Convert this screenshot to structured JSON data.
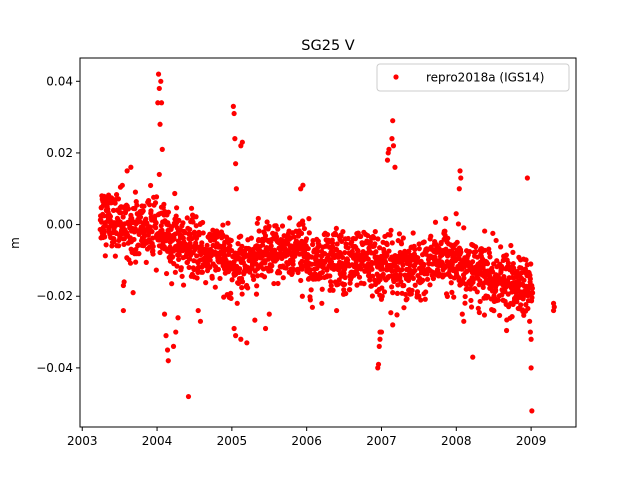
{
  "chart_data": {
    "type": "scatter",
    "title": "SG25 V",
    "xlabel": "",
    "ylabel": "m",
    "xlim": [
      2002.97,
      2009.6
    ],
    "ylim": [
      -0.0565,
      0.0465
    ],
    "x_ticks": [
      2003,
      2004,
      2005,
      2006,
      2007,
      2008,
      2009
    ],
    "x_tick_labels": [
      "2003",
      "2004",
      "2005",
      "2006",
      "2007",
      "2008",
      "2009"
    ],
    "y_ticks": [
      -0.04,
      -0.02,
      0.0,
      0.02,
      0.04
    ],
    "y_tick_labels": [
      "−0.04",
      "−0.02",
      "0.00",
      "0.02",
      "0.04"
    ],
    "grid": false,
    "legend_position": "top-right",
    "series": [
      {
        "name": "repro2018a (IGS14)",
        "color": "#ff0000",
        "marker": "circle",
        "trend": [
          [
            2003.25,
            0.003
          ],
          [
            2003.5,
            0.0
          ],
          [
            2003.75,
            -0.001
          ],
          [
            2004.0,
            -0.002
          ],
          [
            2004.25,
            -0.005
          ],
          [
            2004.5,
            -0.007
          ],
          [
            2004.75,
            -0.008
          ],
          [
            2005.0,
            -0.01
          ],
          [
            2005.25,
            -0.01
          ],
          [
            2005.5,
            -0.009
          ],
          [
            2005.75,
            -0.007
          ],
          [
            2006.0,
            -0.008
          ],
          [
            2006.25,
            -0.011
          ],
          [
            2006.5,
            -0.01
          ],
          [
            2006.75,
            -0.009
          ],
          [
            2007.0,
            -0.012
          ],
          [
            2007.25,
            -0.012
          ],
          [
            2007.5,
            -0.013
          ],
          [
            2007.75,
            -0.009
          ],
          [
            2008.0,
            -0.011
          ],
          [
            2008.25,
            -0.013
          ],
          [
            2008.5,
            -0.015
          ],
          [
            2008.75,
            -0.017
          ],
          [
            2009.0,
            -0.018
          ]
        ],
        "outliers": [
          [
            2004.02,
            0.042
          ],
          [
            2004.05,
            0.04
          ],
          [
            2004.03,
            0.038
          ],
          [
            2004.06,
            0.034
          ],
          [
            2004.01,
            0.034
          ],
          [
            2004.04,
            0.028
          ],
          [
            2004.07,
            0.021
          ],
          [
            2004.03,
            0.014
          ],
          [
            2004.1,
            -0.025
          ],
          [
            2004.12,
            -0.031
          ],
          [
            2004.14,
            -0.035
          ],
          [
            2004.15,
            -0.038
          ],
          [
            2004.25,
            -0.03
          ],
          [
            2004.22,
            -0.034
          ],
          [
            2004.28,
            -0.026
          ],
          [
            2004.42,
            -0.048
          ],
          [
            2004.58,
            -0.027
          ],
          [
            2004.55,
            -0.024
          ],
          [
            2003.55,
            -0.017
          ],
          [
            2003.56,
            -0.016
          ],
          [
            2003.55,
            -0.024
          ],
          [
            2003.68,
            -0.019
          ],
          [
            2003.6,
            0.015
          ],
          [
            2003.65,
            0.016
          ],
          [
            2005.02,
            0.033
          ],
          [
            2005.03,
            0.031
          ],
          [
            2005.04,
            0.024
          ],
          [
            2005.14,
            0.023
          ],
          [
            2005.12,
            0.022
          ],
          [
            2005.05,
            0.017
          ],
          [
            2005.06,
            0.01
          ],
          [
            2005.03,
            -0.029
          ],
          [
            2005.05,
            -0.031
          ],
          [
            2005.12,
            -0.032
          ],
          [
            2005.2,
            -0.033
          ],
          [
            2005.45,
            -0.029
          ],
          [
            2005.5,
            -0.025
          ],
          [
            2005.92,
            0.01
          ],
          [
            2005.95,
            0.011
          ],
          [
            2006.4,
            -0.024
          ],
          [
            2006.95,
            -0.04
          ],
          [
            2006.96,
            -0.039
          ],
          [
            2006.97,
            -0.034
          ],
          [
            2006.98,
            -0.03
          ],
          [
            2006.98,
            -0.032
          ],
          [
            2007.0,
            -0.03
          ],
          [
            2007.08,
            0.018
          ],
          [
            2007.09,
            0.02
          ],
          [
            2007.1,
            0.021
          ],
          [
            2007.15,
            0.029
          ],
          [
            2007.14,
            0.024
          ],
          [
            2007.16,
            0.022
          ],
          [
            2007.18,
            0.016
          ],
          [
            2007.15,
            -0.028
          ],
          [
            2008.05,
            0.015
          ],
          [
            2008.06,
            0.013
          ],
          [
            2008.04,
            0.01
          ],
          [
            2008.22,
            -0.037
          ],
          [
            2008.1,
            -0.027
          ],
          [
            2008.08,
            -0.025
          ],
          [
            2008.95,
            0.013
          ],
          [
            2008.98,
            -0.027
          ],
          [
            2008.99,
            -0.03
          ],
          [
            2009.0,
            -0.032
          ],
          [
            2009.0,
            -0.04
          ],
          [
            2009.01,
            -0.052
          ],
          [
            2009.3,
            -0.022
          ],
          [
            2009.31,
            -0.023
          ],
          [
            2009.3,
            -0.024
          ]
        ]
      }
    ]
  }
}
